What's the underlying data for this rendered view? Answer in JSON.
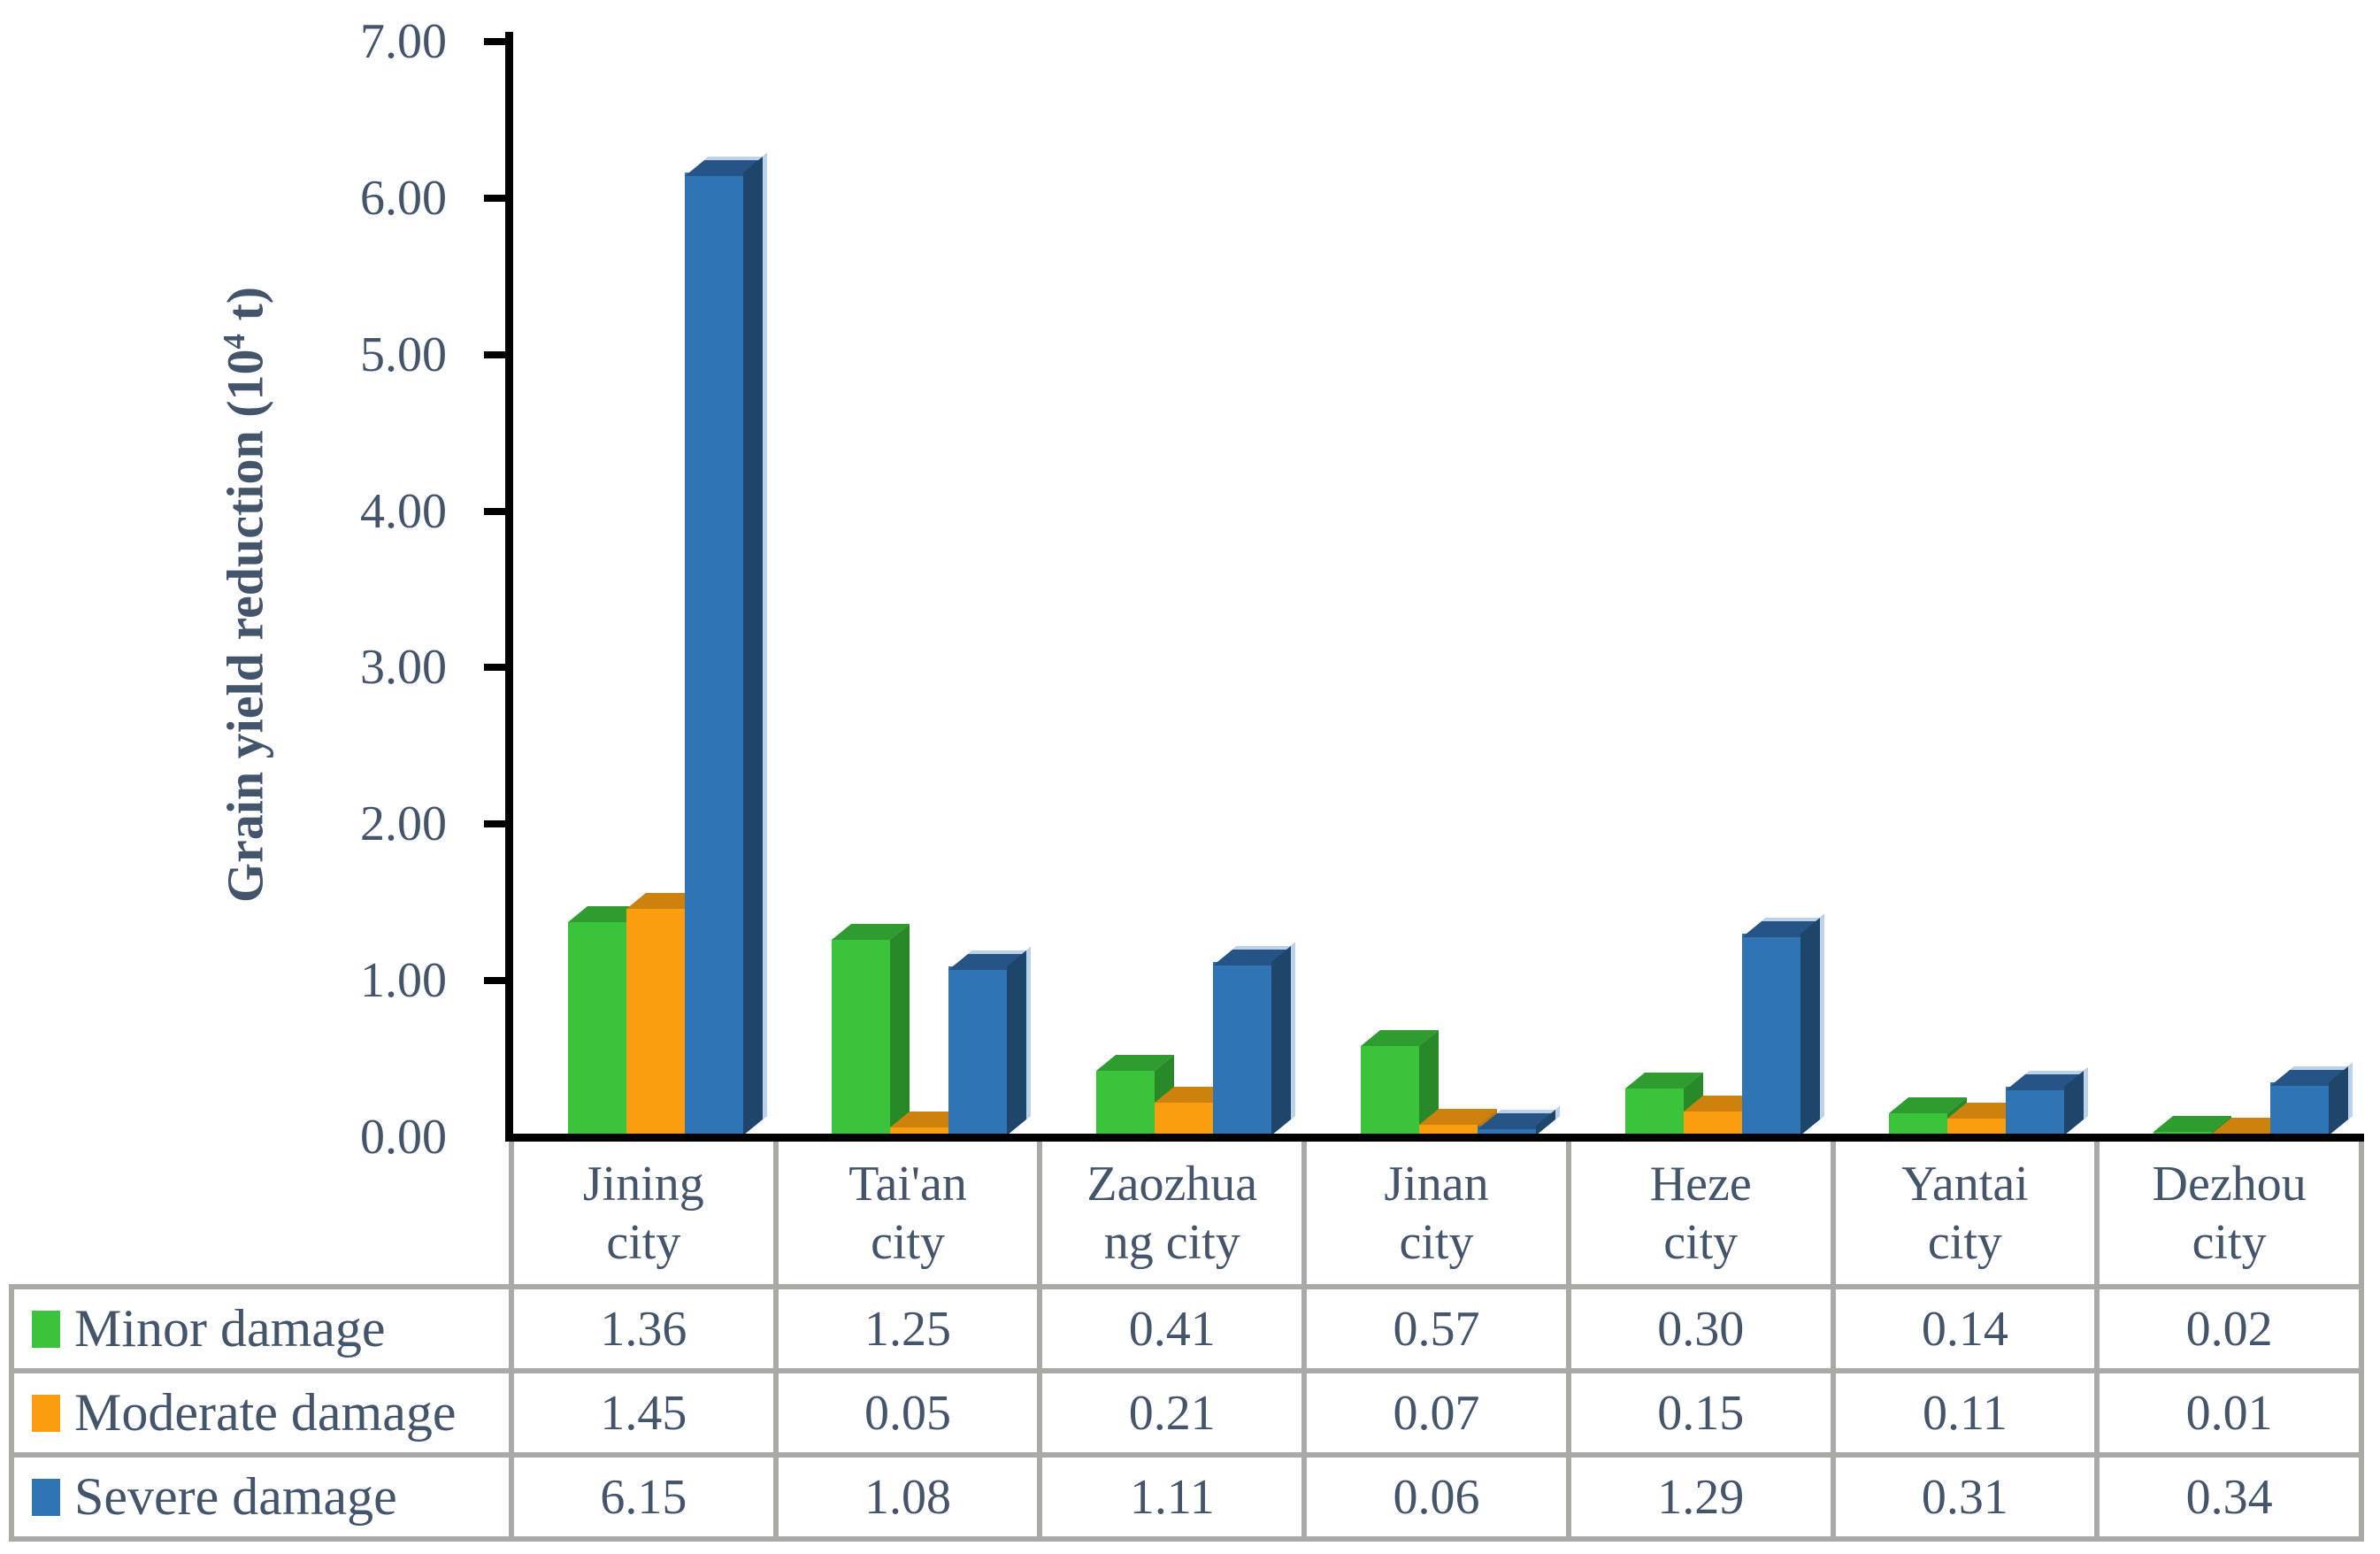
{
  "page_background": "#ffffff",
  "text_color": "#44546A",
  "axis_color": "#000000",
  "table_border_color": "#ABA9A6",
  "chart_data": {
    "type": "bar",
    "style": "3d-clustered-column",
    "title": "",
    "ylabel": {
      "prefix": "Grain yield reduction (10",
      "sup": "4",
      "suffix": " t)"
    },
    "ylim": [
      0,
      7
    ],
    "ytick_step": 1.0,
    "ytick_labels": [
      "0.00",
      "1.00",
      "2.00",
      "3.00",
      "4.00",
      "5.00",
      "6.00",
      "7.00"
    ],
    "grid": false,
    "legend_position": "table-left-column",
    "value_format": "0.00",
    "categories": [
      {
        "full": "Jining city",
        "line1": "Jining",
        "line2": "city"
      },
      {
        "full": "Tai'an city",
        "line1": "Tai'an",
        "line2": "city"
      },
      {
        "full": "Zaozhuang city",
        "line1": "Zaozhua",
        "line2": "ng city"
      },
      {
        "full": "Jinan city",
        "line1": "Jinan",
        "line2": "city"
      },
      {
        "full": "Heze city",
        "line1": "Heze",
        "line2": "city"
      },
      {
        "full": "Yantai city",
        "line1": "Yantai",
        "line2": "city"
      },
      {
        "full": "Dezhou city",
        "line1": "Dezhou",
        "line2": "city"
      }
    ],
    "series": [
      {
        "name": "Minor damage",
        "values": [
          1.36,
          1.25,
          0.41,
          0.57,
          0.3,
          0.14,
          0.02
        ],
        "colors": {
          "front": "#3CC33C",
          "top": "#2E9C2E",
          "side": "#278927",
          "key": "#3CC33C"
        }
      },
      {
        "name": "Moderate damage",
        "values": [
          1.45,
          0.05,
          0.21,
          0.07,
          0.15,
          0.11,
          0.01
        ],
        "colors": {
          "front": "#FA9E10",
          "top": "#CD820D",
          "side": "#BE780C",
          "key": "#FA9E10"
        }
      },
      {
        "name": "Severe damage",
        "values": [
          6.15,
          1.08,
          1.11,
          0.06,
          1.29,
          0.31,
          0.34
        ],
        "colors": {
          "front": "#2F75B5",
          "top": "#265486",
          "side": "#1E466B",
          "key": "#2F75B5",
          "edge": "#BCD2E8"
        }
      }
    ]
  }
}
